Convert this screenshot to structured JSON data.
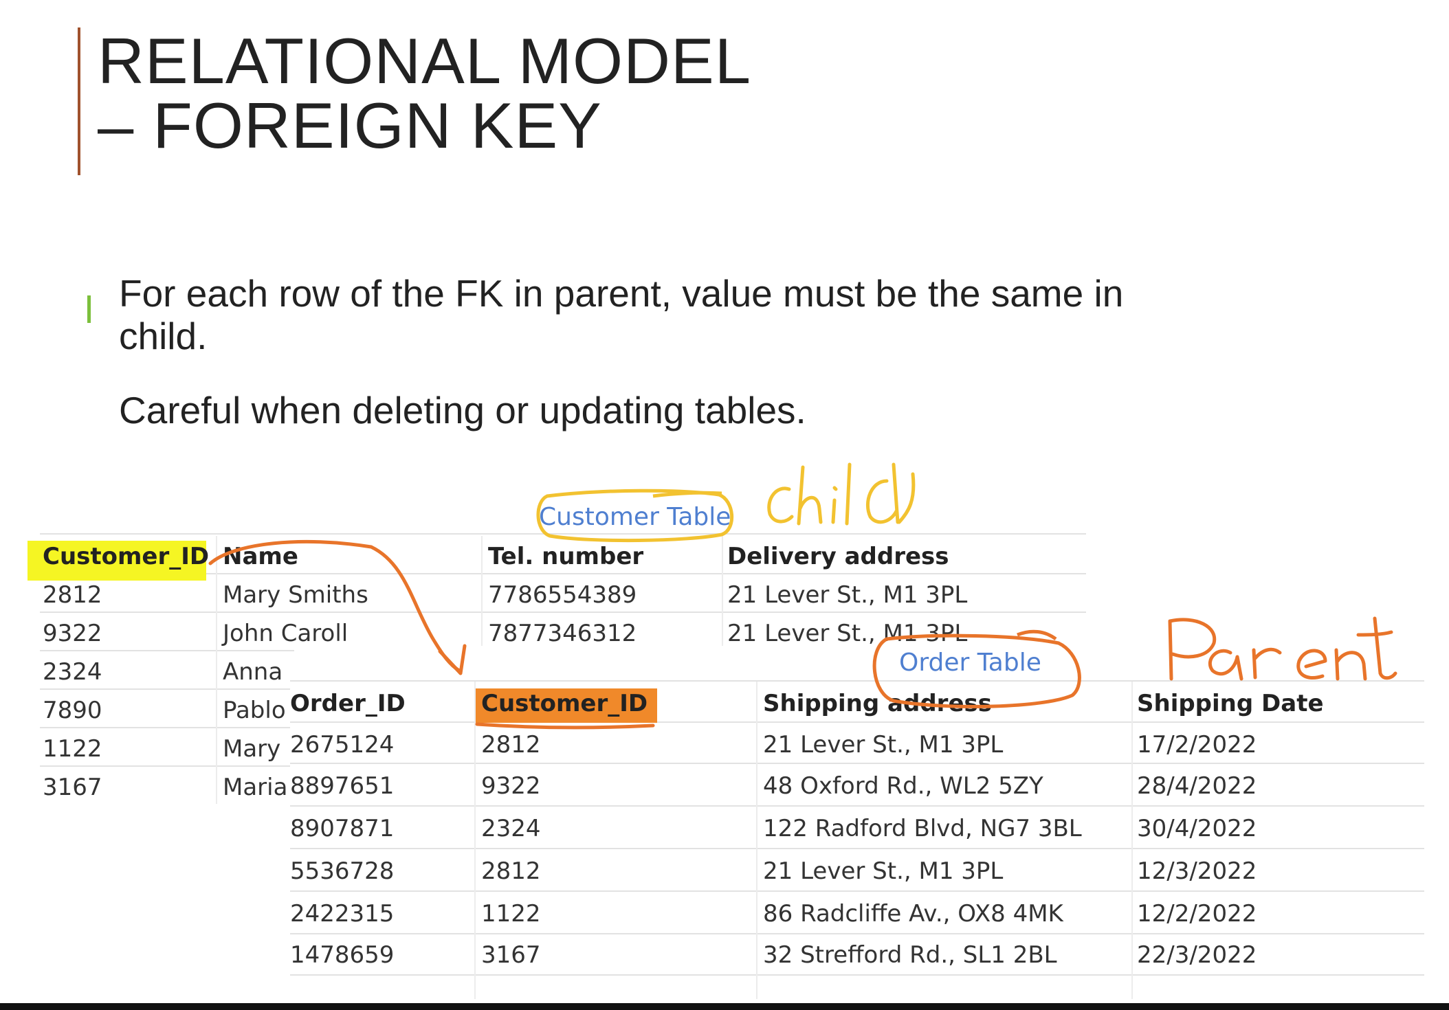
{
  "slide": {
    "title_line1": "RELATIONAL MODEL",
    "title_line2": "– FOREIGN KEY",
    "bullet_line1": "For each row of the FK in parent, value must be the same in",
    "bullet_line2": "child.",
    "note": "Careful when deleting or updating tables."
  },
  "customer_table": {
    "caption": "Customer Table",
    "headers": [
      "Customer_ID",
      "Name",
      "Tel. number",
      "Delivery address"
    ],
    "rows": [
      [
        "2812",
        "Mary Smiths",
        "7786554389",
        "21 Lever St., M1 3PL"
      ],
      [
        "9322",
        "John Caroll",
        "7877346312",
        "21 Lever St., M1 3PL"
      ],
      [
        "2324",
        "Anna",
        "",
        ""
      ],
      [
        "7890",
        "Pablo",
        "",
        ""
      ],
      [
        "1122",
        "Mary",
        "",
        ""
      ],
      [
        "3167",
        "Maria",
        "",
        ""
      ]
    ]
  },
  "order_table": {
    "caption": "Order Table",
    "headers": [
      "Order_ID",
      "Customer_ID",
      "Shipping address",
      "Shipping Date"
    ],
    "rows": [
      [
        "2675124",
        "2812",
        "21 Lever St., M1 3PL",
        "17/2/2022"
      ],
      [
        "8897651",
        "9322",
        "48 Oxford Rd., WL2 5ZY",
        "28/4/2022"
      ],
      [
        "8907871",
        "2324",
        "122 Radford Blvd, NG7 3BL",
        "30/4/2022"
      ],
      [
        "5536728",
        "2812",
        "21 Lever St., M1 3PL",
        "12/3/2022"
      ],
      [
        "2422315",
        "1122",
        "86 Radcliffe Av., OX8 4MK",
        "12/2/2022"
      ],
      [
        "1478659",
        "3167",
        "32 Strefford Rd., SL1 2BL",
        "22/3/2022"
      ]
    ]
  },
  "annotations": {
    "child_label": "child",
    "parent_label": "Parent",
    "ink_orange": "#e8742a",
    "ink_yellow": "#f2c230",
    "highlight_yellow": "#f5f523",
    "highlight_orange": "#f0892a"
  }
}
